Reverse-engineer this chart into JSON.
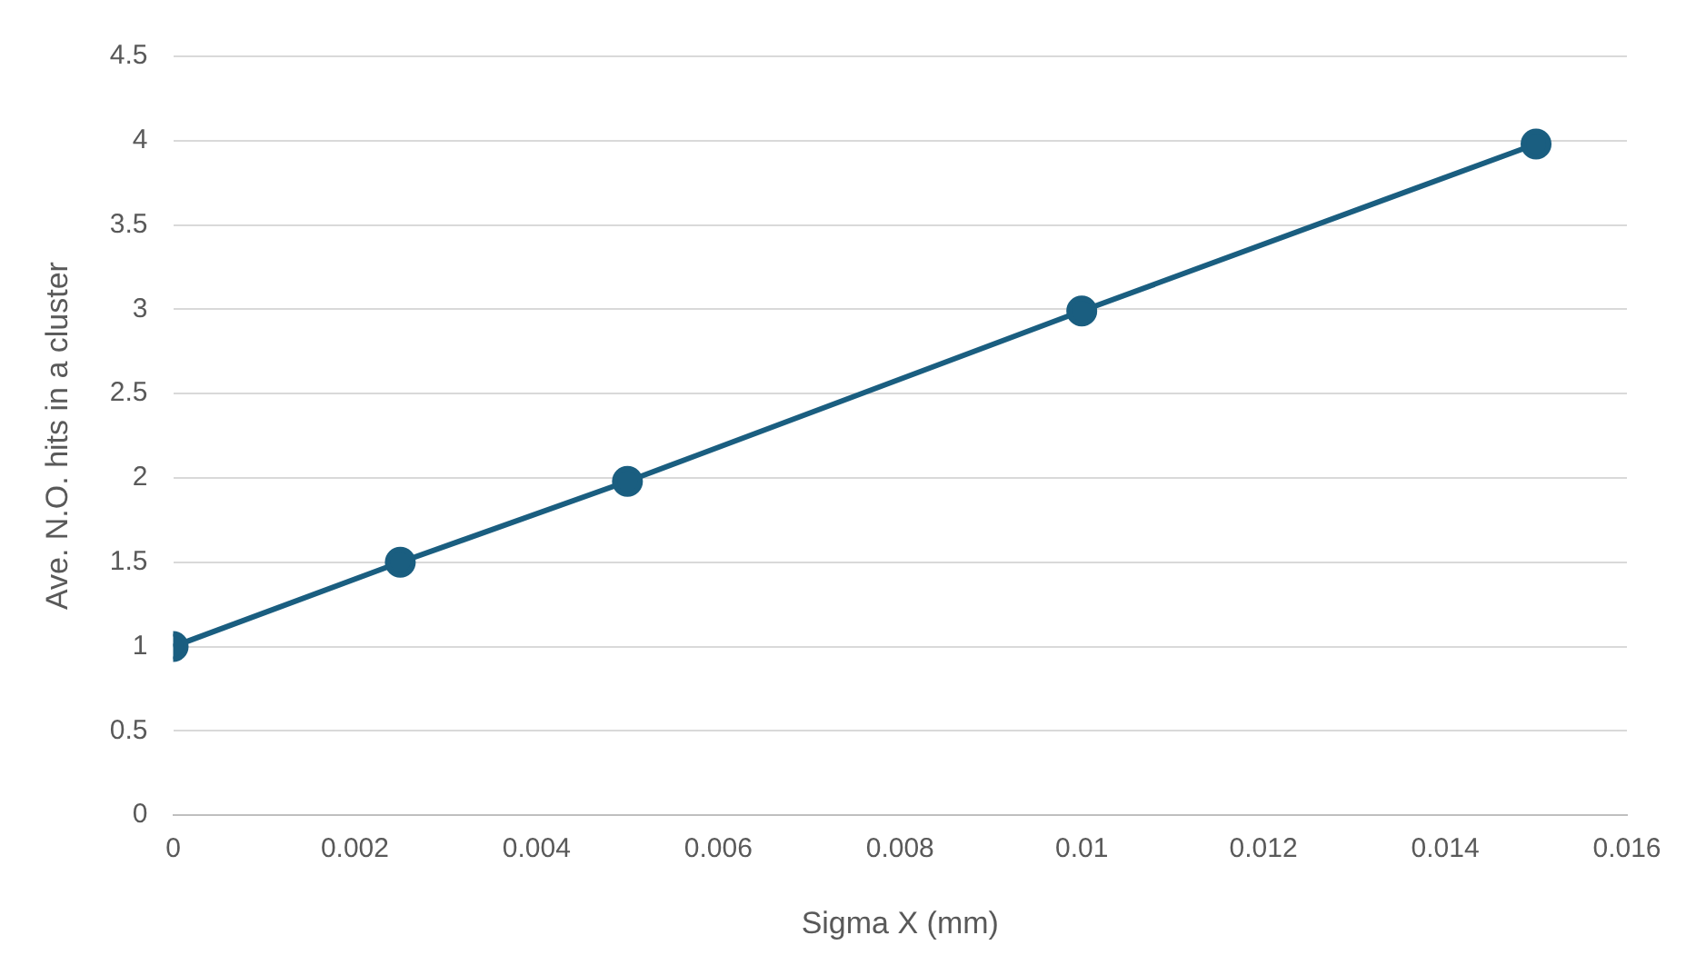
{
  "chart_data": {
    "type": "scatter",
    "xlabel": "Sigma X (mm)",
    "ylabel": "Ave. N.O. hits in a cluster",
    "x": [
      0,
      0.0025,
      0.005,
      0.01,
      0.015
    ],
    "series": [
      {
        "type": "line",
        "color": "#1a5e80",
        "values": [
          1,
          1.5,
          1.98,
          2.99,
          3.98
        ]
      }
    ],
    "xlim": [
      0,
      0.016
    ],
    "xticks": [
      0,
      0.002,
      0.004,
      0.006,
      0.008,
      0.01,
      0.012,
      0.014,
      0.016
    ],
    "ylim": [
      0,
      4.5
    ],
    "yticks": [
      0,
      0.5,
      1,
      1.5,
      2,
      2.5,
      3,
      3.5,
      4,
      4.5
    ],
    "grid": "y",
    "legend": false,
    "marker": "circle",
    "line_style": "solid"
  }
}
